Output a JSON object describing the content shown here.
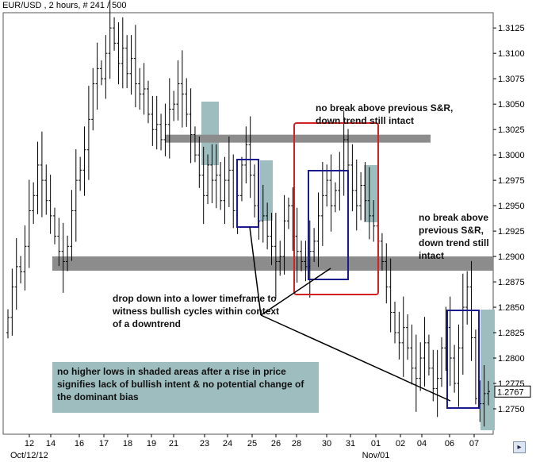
{
  "header": {
    "title": "EUR/USD , 2 hours, # 241 / 500"
  },
  "chart_data": {
    "type": "ohlc",
    "title": "EUR/USD , 2 hours, # 241 / 500",
    "ylim": [
      1.2725,
      1.314
    ],
    "y_ticks": [
      "1.3125",
      "1.3100",
      "1.3075",
      "1.3050",
      "1.3025",
      "1.3000",
      "1.2975",
      "1.2950",
      "1.2925",
      "1.2900",
      "1.2875",
      "1.2850",
      "1.2825",
      "1.2800",
      "1.2775",
      "1.2750"
    ],
    "x_ticks": [
      "12",
      "14",
      "16",
      "17",
      "18",
      "19",
      "21",
      "23",
      "24",
      "25",
      "26",
      "28",
      "30",
      "31",
      "01",
      "02",
      "04",
      "06",
      "07"
    ],
    "x_secondary_labels": [
      "Oct/12/12",
      "Nov/01"
    ],
    "last_price": "1.2767",
    "support_resistance_levels": [
      1.3016,
      1.2893
    ],
    "closes": [
      1.284,
      1.287,
      1.289,
      1.2885,
      1.291,
      1.2945,
      1.296,
      1.299,
      1.2975,
      1.2955,
      1.294,
      1.292,
      1.2905,
      1.2895,
      1.291,
      1.2945,
      1.2975,
      1.2985,
      1.3005,
      1.3035,
      1.307,
      1.3085,
      1.3075,
      1.31,
      1.3125,
      1.311,
      1.309,
      1.3105,
      1.308,
      1.3095,
      1.307,
      1.306,
      1.3065,
      1.304,
      1.3025,
      1.303,
      1.3015,
      1.303,
      1.3045,
      1.305,
      1.307,
      1.306,
      1.304,
      1.302,
      1.3,
      1.298,
      1.296,
      1.299,
      1.2975,
      1.298,
      1.2955,
      1.2975,
      1.2985,
      1.2945,
      1.296,
      1.299,
      1.301,
      1.298,
      1.295,
      1.2935,
      1.294,
      1.292,
      1.291,
      1.2895,
      1.29,
      1.2935,
      1.295,
      1.292,
      1.2905,
      1.2895,
      1.289,
      1.2905,
      1.2915,
      1.294,
      1.296,
      1.2975,
      1.295,
      1.2965,
      1.2985,
      1.3015,
      1.299,
      1.2965,
      1.295,
      1.297,
      1.2955,
      1.294,
      1.293,
      1.2915,
      1.2895,
      1.287,
      1.2845,
      1.2825,
      1.2815,
      1.283,
      1.281,
      1.279,
      1.278,
      1.28,
      1.2815,
      1.279,
      1.277,
      1.278,
      1.281,
      1.283,
      1.28,
      1.2775,
      1.281,
      1.285,
      1.287,
      1.282,
      1.276,
      1.2755,
      1.2765,
      1.2767
    ]
  },
  "annotations": {
    "top": "no break above previous S&R, down trend still intact",
    "right": "no break above previous S&R, down trend still intact",
    "middle": "drop down into a lower timeframe to witness bullish cycles within context of a downtrend",
    "shaded_box": "no higher lows in shaded areas after a rise in price signifies lack of bullish intent & no potential change of the dominant bias"
  },
  "colors": {
    "candles": "#000000",
    "sr_band": "#8c8c8c",
    "shaded": "#9ebdbf",
    "blue_box": "#1a1a8c",
    "red_box": "#d42020",
    "arrow": "#000000"
  },
  "controls": {
    "scroll_right": "▸"
  }
}
